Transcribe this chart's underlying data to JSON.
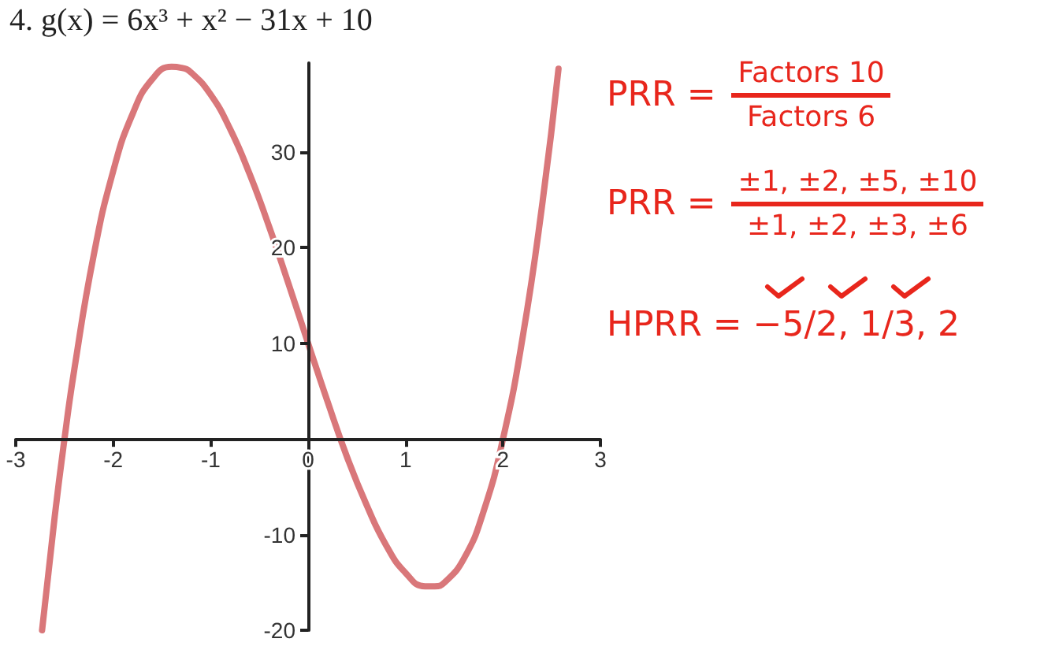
{
  "chart_data": {
    "type": "line",
    "title": "4. g(x) = 6x³ + x² − 31x + 10",
    "x": [
      -2.73,
      -2.6,
      -2.5,
      -2.4,
      -2.2,
      -2.0,
      -1.8,
      -1.6,
      -1.4,
      -1.3,
      -1.2,
      -1.0,
      -0.8,
      -0.6,
      -0.4,
      -0.2,
      0,
      0.2,
      0.4,
      0.6,
      0.8,
      1.0,
      1.2,
      1.3,
      1.4,
      1.6,
      1.8,
      2.0,
      2.2,
      2.4,
      2.57
    ],
    "series": [
      {
        "color": "#d9777a",
        "values": [
          -20,
          -8.1,
          0,
          7.2,
          19.2,
          28,
          34,
          37.6,
          38.9,
          38.8,
          38.3,
          36,
          32.4,
          27.7,
          22.2,
          16.2,
          10,
          3.9,
          -1.9,
          -6.9,
          -11.1,
          -14,
          -15.4,
          -15.4,
          -15,
          -12.5,
          -7.6,
          0,
          10.5,
          24.3,
          38.7
        ]
      }
    ],
    "xlim": [
      -3,
      3
    ],
    "xticks": [
      -3,
      -2,
      -1,
      0,
      1,
      2,
      3
    ],
    "ylim": [
      -20,
      39.3
    ],
    "yticks": [
      -20,
      -10,
      {
        "value": 0,
        "label": null
      },
      10,
      20,
      30
    ],
    "marker": "none",
    "line_style": "solid",
    "annotations": [
      "PRR =",
      "Factors 10",
      "Factors 6",
      "PRR =",
      "±1, ±2, ±5, ±10",
      "±1, ±2, ±3, ±6",
      "HPRR = −5/2, 1/3, 2"
    ]
  }
}
